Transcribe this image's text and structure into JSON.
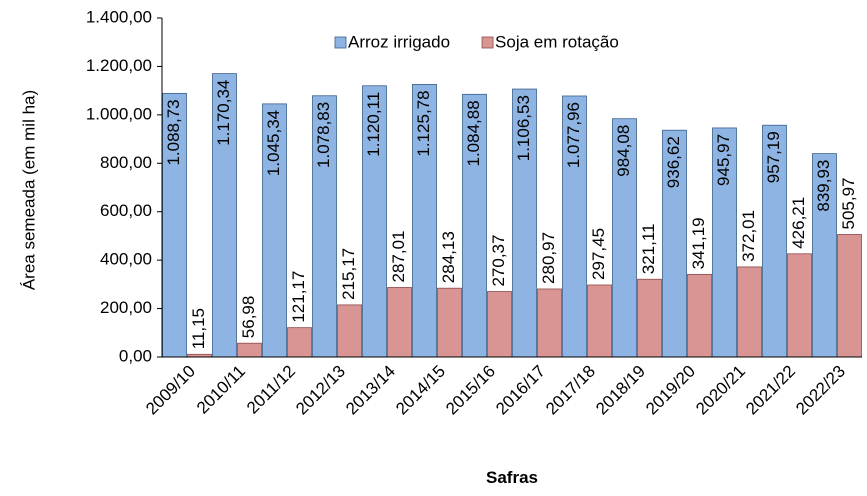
{
  "chart_data": {
    "type": "bar",
    "y_label": "Área semeada (em mil ha)",
    "x_label": "Safras",
    "categories": [
      "2009/10",
      "2010/11",
      "2011/12",
      "2012/13",
      "2013/14",
      "2014/15",
      "2015/16",
      "2016/17",
      "2017/18",
      "2018/19",
      "2019/20",
      "2020/21",
      "2021/22",
      "2022/23"
    ],
    "series": [
      {
        "name": "Arroz irrigado",
        "color": "#8eb4e3",
        "values": [
          1088.73,
          1170.34,
          1045.34,
          1078.83,
          1120.11,
          1125.78,
          1084.88,
          1106.53,
          1077.96,
          984.08,
          936.62,
          945.97,
          957.19,
          839.93
        ],
        "value_labels": [
          "1.088,73",
          "1.170,34",
          "1.045,34",
          "1.078,83",
          "1.120,11",
          "1.125,78",
          "1.084,88",
          "1.106,53",
          "1.077,96",
          "984,08",
          "936,62",
          "945,97",
          "957,19",
          "839,93"
        ]
      },
      {
        "name": "Soja em rotação",
        "color": "#d99594",
        "values": [
          11.15,
          56.98,
          121.17,
          215.17,
          287.01,
          284.13,
          270.37,
          280.97,
          297.45,
          321.11,
          341.19,
          372.01,
          426.21,
          505.97
        ],
        "value_labels": [
          "11,15",
          "56,98",
          "121,17",
          "215,17",
          "287,01",
          "284,13",
          "270,37",
          "280,97",
          "297,45",
          "321,11",
          "341,19",
          "372,01",
          "426,21",
          "505,97"
        ]
      }
    ],
    "ylim": [
      0,
      1400
    ],
    "yticks": [
      {
        "value": 0,
        "label": "0,00"
      },
      {
        "value": 200,
        "label": "200,00"
      },
      {
        "value": 400,
        "label": "400,00"
      },
      {
        "value": 600,
        "label": "600,00"
      },
      {
        "value": 800,
        "label": "800,00"
      },
      {
        "value": 1000,
        "label": "1.000,00"
      },
      {
        "value": 1200,
        "label": "1.200,00"
      },
      {
        "value": 1400,
        "label": "1.400,00"
      }
    ],
    "legend": "top"
  }
}
